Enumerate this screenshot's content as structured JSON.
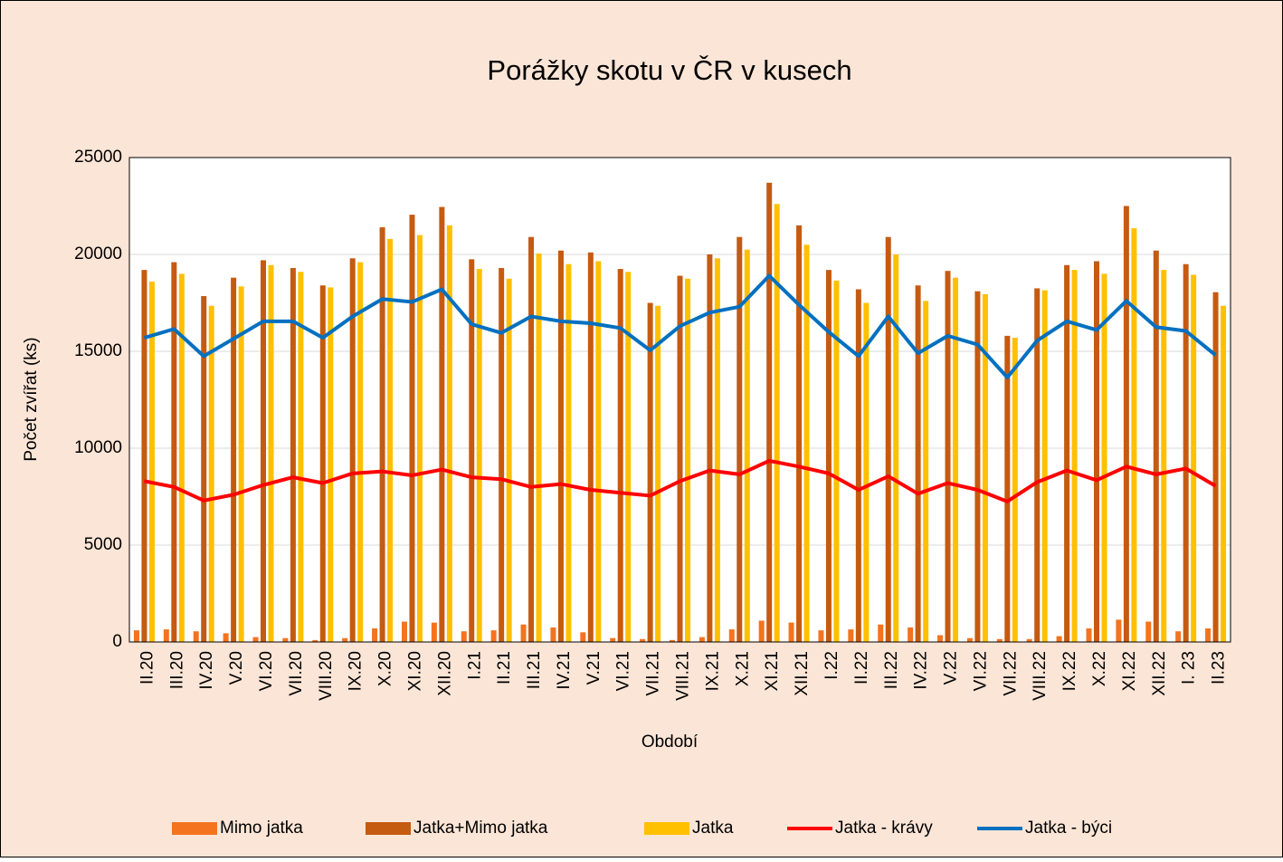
{
  "chart_data": {
    "type": "bar-line",
    "title": "Porážky skotu v ČR v kusech",
    "x_label": "Období",
    "y_label": "Počet zvířat (ks)",
    "categories": [
      "II.20",
      "III.20",
      "IV.20",
      "V.20",
      "VI.20",
      "VII.20",
      "VIII.20",
      "IX.20",
      "X.20",
      "XI.20",
      "XII.20",
      "I.21",
      "II.21",
      "III.21",
      "IV.21",
      "V.21",
      "VI.21",
      "VII.21",
      "VIII.21",
      "IX.21",
      "X.21",
      "XI.21",
      "XII.21",
      "I.22",
      "II.22",
      "III.22",
      "IV.22",
      "V.22",
      "VI.22",
      "VII.22",
      "VIII.22",
      "IX.22",
      "X.22",
      "XI.22",
      "XII.22",
      "I. 23",
      "II.23"
    ],
    "series": [
      {
        "name": "Mimo jatka",
        "kind": "bar",
        "color": "#f4731f",
        "values": [
          600,
          650,
          550,
          450,
          250,
          200,
          100,
          200,
          700,
          1050,
          1000,
          550,
          600,
          900,
          750,
          500,
          200,
          150,
          100,
          250,
          650,
          1100,
          1000,
          600,
          650,
          900,
          750,
          350,
          200,
          150,
          150,
          300,
          700,
          1150,
          1050,
          550,
          700
        ]
      },
      {
        "name": "Jatka+Mimo jatka",
        "kind": "bar",
        "color": "#c55a11",
        "values": [
          19200,
          19600,
          17850,
          18800,
          19700,
          19300,
          18400,
          19800,
          21400,
          22050,
          22450,
          19750,
          19300,
          20900,
          20200,
          20100,
          19250,
          17500,
          18900,
          20000,
          20900,
          23700,
          21500,
          19200,
          18200,
          20900,
          18400,
          19150,
          18100,
          15800,
          18250,
          19450,
          19650,
          22500,
          20200,
          19500,
          18050
        ]
      },
      {
        "name": "Jatka",
        "kind": "bar",
        "color": "#ffc000",
        "values": [
          18600,
          19000,
          17350,
          18350,
          19450,
          19100,
          18300,
          19600,
          20800,
          21000,
          21500,
          19250,
          18750,
          20050,
          19500,
          19650,
          19100,
          17350,
          18750,
          19800,
          20250,
          22600,
          20500,
          18650,
          17500,
          20000,
          17600,
          18800,
          17950,
          15700,
          18150,
          19200,
          19000,
          21350,
          19200,
          18950,
          17350
        ]
      },
      {
        "name": "Jatka - krávy",
        "kind": "line",
        "color": "#ff0000",
        "values": [
          8300,
          8000,
          7300,
          7600,
          8100,
          8500,
          8200,
          8700,
          8800,
          8600,
          8900,
          8500,
          8400,
          8000,
          8150,
          7850,
          7700,
          7550,
          8300,
          8850,
          8650,
          9350,
          9050,
          8700,
          7850,
          8550,
          7650,
          8200,
          7850,
          7250,
          8250,
          8850,
          8350,
          9050,
          8650,
          8950,
          8050
        ]
      },
      {
        "name": "Jatka - býci",
        "kind": "line",
        "color": "#0070c0",
        "values": [
          15700,
          16150,
          14750,
          15650,
          16550,
          16550,
          15700,
          16800,
          17700,
          17550,
          18200,
          16400,
          15950,
          16800,
          16550,
          16450,
          16200,
          15050,
          16300,
          17000,
          17300,
          18900,
          17400,
          16000,
          14750,
          16800,
          14900,
          15800,
          15350,
          13650,
          15550,
          16550,
          16100,
          17600,
          16250,
          16050,
          14800
        ]
      }
    ],
    "ylim": [
      0,
      25000
    ],
    "yticks": [
      0,
      5000,
      10000,
      15000,
      20000,
      25000
    ],
    "grid": true,
    "legend": "bottom"
  }
}
